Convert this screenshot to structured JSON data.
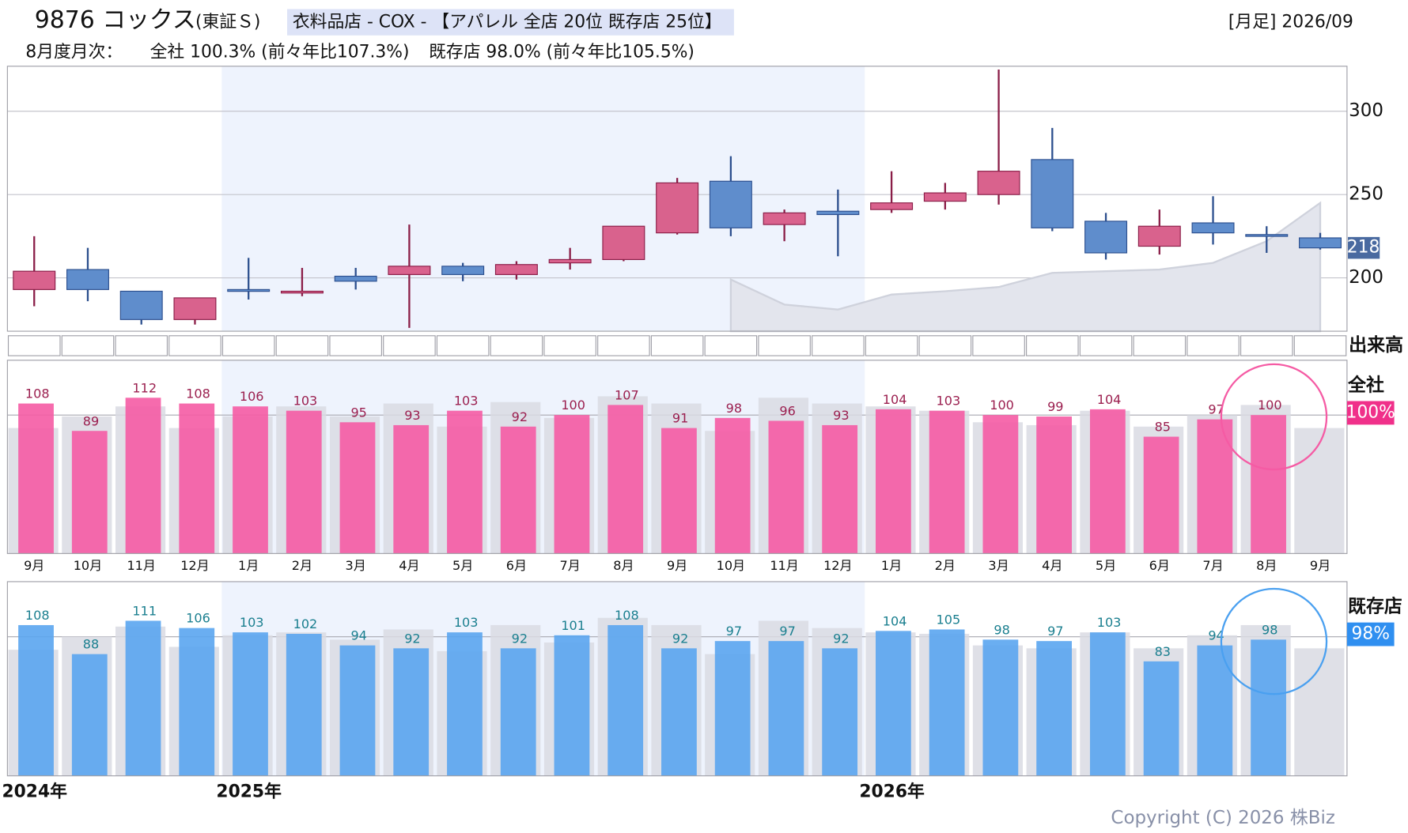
{
  "header": {
    "code_name": "9876 コックス",
    "market": "(東証Ｓ)",
    "sector": "衣料品店 - COX - 【アパレル 全店 20位 既存店 25位】",
    "period": "[月足] 2026/09",
    "monthly_title": "8月度月次：",
    "summary_all": "全社 100.3% (前々年比107.3%)",
    "summary_existing": "既存店 98.0% (前々年比105.5%)"
  },
  "years": [
    {
      "label": "2024年",
      "start_index": 0
    },
    {
      "label": "2025年",
      "start_index": 4,
      "highlight": true
    },
    {
      "label": "2026年",
      "start_index": 16
    }
  ],
  "copyright": "Copyright (C) 2026 株Biz",
  "chart_data": [
    {
      "type": "candlestick",
      "open": [
        193,
        205,
        192,
        175,
        193,
        191,
        201,
        202,
        207,
        202,
        209,
        211,
        227,
        258,
        232,
        240,
        241,
        246,
        250,
        271,
        234,
        219,
        233,
        226,
        224
      ],
      "high": [
        225,
        218,
        192,
        188,
        212,
        206,
        206,
        232,
        209,
        210,
        218,
        231,
        260,
        273,
        241,
        253,
        264,
        257,
        325,
        290,
        239,
        241,
        249,
        231,
        227
      ],
      "low": [
        183,
        186,
        172,
        172,
        187,
        189,
        193,
        170,
        198,
        199,
        205,
        210,
        226,
        225,
        222,
        213,
        239,
        241,
        244,
        228,
        211,
        214,
        220,
        215,
        217
      ],
      "close": [
        204,
        193,
        175,
        188,
        192,
        192,
        198,
        207,
        202,
        208,
        211,
        231,
        257,
        230,
        239,
        238,
        245,
        251,
        264,
        230,
        215,
        231,
        227,
        225,
        218
      ],
      "up_color": "#d9628d",
      "down_color": "#5f8dcc",
      "ylim": [
        168,
        327
      ],
      "yticks": [
        200,
        250,
        300
      ],
      "grid": true,
      "last_label": 218,
      "area": {
        "values": [
          null,
          null,
          null,
          null,
          null,
          null,
          null,
          null,
          null,
          null,
          null,
          null,
          null,
          199,
          184,
          181,
          190,
          192,
          194.5,
          203,
          204,
          205,
          209,
          222,
          245
        ],
        "color": "#e3e5ed"
      },
      "volume_label": "出来高"
    },
    {
      "type": "bar",
      "name": "全社",
      "badge": "100%",
      "badge_color": "#f0308a",
      "categories": [
        "9月",
        "10月",
        "11月",
        "12月",
        "1月",
        "2月",
        "3月",
        "4月",
        "5月",
        "6月",
        "7月",
        "8月",
        "9月",
        "10月",
        "11月",
        "12月",
        "1月",
        "2月",
        "3月",
        "4月",
        "5月",
        "6月",
        "7月",
        "8月",
        "9月"
      ],
      "values": [
        108,
        89,
        112,
        108,
        106,
        103,
        95,
        93,
        103,
        92,
        100,
        107,
        91,
        98,
        96,
        93,
        104,
        103,
        100,
        99,
        104,
        85,
        97,
        100,
        null
      ],
      "prev_values": [
        91,
        99,
        106,
        91,
        99,
        106,
        99,
        108,
        92,
        109,
        98,
        113,
        108,
        89,
        112,
        108,
        106,
        103,
        95,
        93,
        103,
        92,
        100,
        107,
        91
      ],
      "color": "#f55ba4",
      "prev_color": "#d9dae3",
      "label_color": "#9b1f4f",
      "circle_color": "#f55ba4",
      "ylim": [
        4,
        138
      ],
      "baseline": 100
    },
    {
      "type": "bar",
      "name": "既存店",
      "badge": "98%",
      "badge_color": "#2f8ff0",
      "values": [
        108,
        88,
        111,
        106,
        103,
        102,
        94,
        92,
        103,
        92,
        101,
        108,
        92,
        97,
        97,
        92,
        104,
        105,
        98,
        97,
        103,
        83,
        94,
        98,
        null
      ],
      "prev_values": [
        91,
        100,
        107,
        93,
        101,
        103,
        98,
        105,
        90,
        108,
        96,
        113,
        108,
        88,
        111,
        106,
        103,
        102,
        94,
        92,
        103,
        92,
        101,
        108,
        92
      ],
      "color": "#5aa5f0",
      "prev_color": "#d9dae3",
      "label_color": "#1a7f8f",
      "circle_color": "#4aa0f0",
      "ylim": [
        4,
        138
      ],
      "baseline": 100
    }
  ]
}
